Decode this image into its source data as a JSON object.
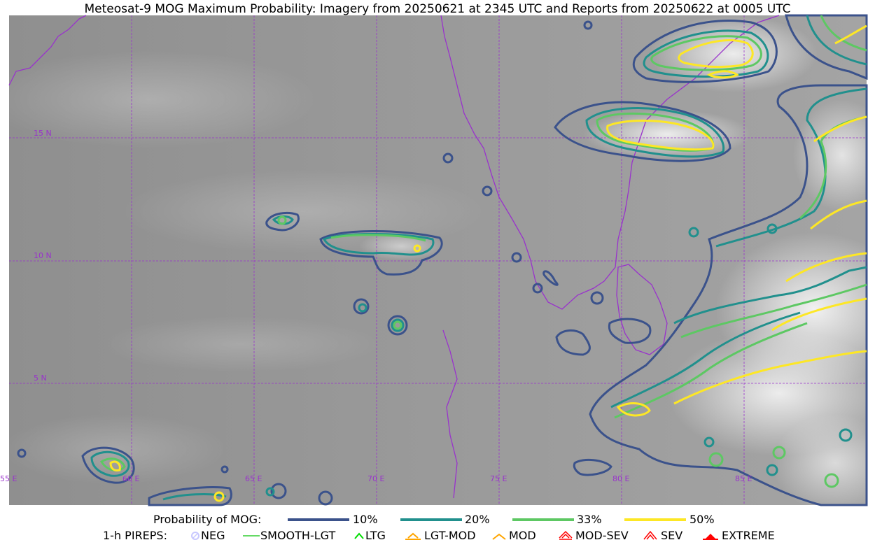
{
  "title": "Meteosat-9 MOG Maximum Probability: Imagery from 20250621 at 2345 UTC and Reports from 20250622 at 0005 UTC",
  "map": {
    "lat_labels": [
      "15 N",
      "10 N",
      "5 N"
    ],
    "lon_labels": [
      "55 E",
      "60 E",
      "65 E",
      "70 E",
      "75 E",
      "80 E",
      "85 E"
    ],
    "grid_color": "#9932cc",
    "coast_color": "#9932cc"
  },
  "legend": {
    "prob_title": "Probability of MOG:",
    "prob_items": [
      {
        "label": "10%",
        "color": "#3b528b"
      },
      {
        "label": "20%",
        "color": "#21908d"
      },
      {
        "label": "33%",
        "color": "#5dc863"
      },
      {
        "label": "50%",
        "color": "#fde725"
      }
    ],
    "pirep_title": "1-h PIREPS:",
    "pirep_items": [
      {
        "label": "NEG",
        "icon": "neg-circle-icon",
        "color": "#c8c8ff"
      },
      {
        "label": "SMOOTH-LGT",
        "icon": "line-icon",
        "color": "#32cd32"
      },
      {
        "label": "LTG",
        "icon": "caret-icon",
        "color": "#00dd00"
      },
      {
        "label": "LGT-MOD",
        "icon": "caret-bar-icon",
        "color": "#ffa500"
      },
      {
        "label": "MOD",
        "icon": "caret-icon",
        "color": "#ffa500"
      },
      {
        "label": "MOD-SEV",
        "icon": "double-caret-icon",
        "color": "#ff0000"
      },
      {
        "label": "SEV",
        "icon": "double-caret-icon",
        "color": "#ff0000"
      },
      {
        "label": "EXTREME",
        "icon": "filled-triangle-icon",
        "color": "#ff0000"
      }
    ]
  }
}
